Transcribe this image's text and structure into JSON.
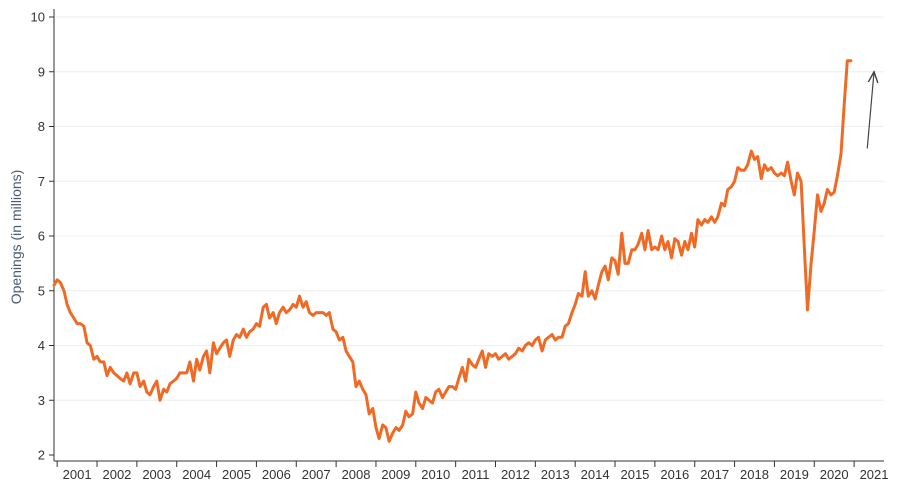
{
  "chart_data": {
    "type": "line",
    "ylabel": "Openings (in millions)",
    "ylim": [
      2,
      10
    ],
    "y_ticks": [
      "2",
      "3",
      "4",
      "5",
      "6",
      "7",
      "8",
      "9",
      "10"
    ],
    "x_range": [
      2000.92,
      2021.75
    ],
    "x_ticks": [
      "2001",
      "2002",
      "2003",
      "2004",
      "2005",
      "2006",
      "2007",
      "2008",
      "2009",
      "2010",
      "2011",
      "2012",
      "2013",
      "2014",
      "2015",
      "2016",
      "2017",
      "2018",
      "2019",
      "2020",
      "2021"
    ],
    "grid": "horizontal",
    "series_color": "#ef6a25",
    "series": [
      {
        "points": [
          [
            2000.92,
            5.1
          ],
          [
            2001.0,
            5.2
          ],
          [
            2001.08,
            5.15
          ],
          [
            2001.17,
            5.0
          ],
          [
            2001.25,
            4.75
          ],
          [
            2001.33,
            4.6
          ],
          [
            2001.42,
            4.5
          ],
          [
            2001.5,
            4.4
          ],
          [
            2001.58,
            4.4
          ],
          [
            2001.67,
            4.35
          ],
          [
            2001.75,
            4.05
          ],
          [
            2001.83,
            4.0
          ],
          [
            2001.92,
            3.75
          ],
          [
            2002.0,
            3.8
          ],
          [
            2002.08,
            3.7
          ],
          [
            2002.17,
            3.7
          ],
          [
            2002.25,
            3.45
          ],
          [
            2002.33,
            3.6
          ],
          [
            2002.42,
            3.5
          ],
          [
            2002.5,
            3.45
          ],
          [
            2002.58,
            3.4
          ],
          [
            2002.67,
            3.35
          ],
          [
            2002.75,
            3.5
          ],
          [
            2002.83,
            3.3
          ],
          [
            2002.92,
            3.5
          ],
          [
            2003.0,
            3.5
          ],
          [
            2003.08,
            3.25
          ],
          [
            2003.17,
            3.35
          ],
          [
            2003.25,
            3.15
          ],
          [
            2003.33,
            3.1
          ],
          [
            2003.42,
            3.25
          ],
          [
            2003.5,
            3.35
          ],
          [
            2003.58,
            3.0
          ],
          [
            2003.67,
            3.2
          ],
          [
            2003.75,
            3.15
          ],
          [
            2003.83,
            3.3
          ],
          [
            2003.92,
            3.35
          ],
          [
            2004.0,
            3.4
          ],
          [
            2004.08,
            3.5
          ],
          [
            2004.17,
            3.5
          ],
          [
            2004.25,
            3.5
          ],
          [
            2004.33,
            3.7
          ],
          [
            2004.42,
            3.35
          ],
          [
            2004.5,
            3.75
          ],
          [
            2004.58,
            3.55
          ],
          [
            2004.67,
            3.8
          ],
          [
            2004.75,
            3.9
          ],
          [
            2004.83,
            3.5
          ],
          [
            2004.92,
            4.05
          ],
          [
            2005.0,
            3.85
          ],
          [
            2005.08,
            3.95
          ],
          [
            2005.17,
            4.05
          ],
          [
            2005.25,
            4.1
          ],
          [
            2005.33,
            3.8
          ],
          [
            2005.42,
            4.1
          ],
          [
            2005.5,
            4.2
          ],
          [
            2005.58,
            4.15
          ],
          [
            2005.67,
            4.3
          ],
          [
            2005.75,
            4.15
          ],
          [
            2005.83,
            4.25
          ],
          [
            2005.92,
            4.3
          ],
          [
            2006.0,
            4.4
          ],
          [
            2006.08,
            4.35
          ],
          [
            2006.17,
            4.7
          ],
          [
            2006.25,
            4.75
          ],
          [
            2006.33,
            4.5
          ],
          [
            2006.42,
            4.6
          ],
          [
            2006.5,
            4.4
          ],
          [
            2006.58,
            4.6
          ],
          [
            2006.67,
            4.7
          ],
          [
            2006.75,
            4.6
          ],
          [
            2006.83,
            4.65
          ],
          [
            2006.92,
            4.75
          ],
          [
            2007.0,
            4.7
          ],
          [
            2007.08,
            4.9
          ],
          [
            2007.17,
            4.7
          ],
          [
            2007.25,
            4.8
          ],
          [
            2007.33,
            4.6
          ],
          [
            2007.42,
            4.55
          ],
          [
            2007.5,
            4.6
          ],
          [
            2007.58,
            4.6
          ],
          [
            2007.67,
            4.6
          ],
          [
            2007.75,
            4.55
          ],
          [
            2007.83,
            4.6
          ],
          [
            2007.92,
            4.3
          ],
          [
            2008.0,
            4.25
          ],
          [
            2008.08,
            4.1
          ],
          [
            2008.17,
            4.15
          ],
          [
            2008.25,
            3.9
          ],
          [
            2008.33,
            3.8
          ],
          [
            2008.42,
            3.7
          ],
          [
            2008.5,
            3.25
          ],
          [
            2008.58,
            3.35
          ],
          [
            2008.67,
            3.2
          ],
          [
            2008.75,
            3.1
          ],
          [
            2008.83,
            2.75
          ],
          [
            2008.92,
            2.85
          ],
          [
            2009.0,
            2.5
          ],
          [
            2009.08,
            2.3
          ],
          [
            2009.17,
            2.55
          ],
          [
            2009.25,
            2.5
          ],
          [
            2009.33,
            2.25
          ],
          [
            2009.42,
            2.4
          ],
          [
            2009.5,
            2.5
          ],
          [
            2009.58,
            2.45
          ],
          [
            2009.67,
            2.55
          ],
          [
            2009.75,
            2.8
          ],
          [
            2009.83,
            2.7
          ],
          [
            2009.92,
            2.75
          ],
          [
            2010.0,
            3.15
          ],
          [
            2010.08,
            2.95
          ],
          [
            2010.17,
            2.85
          ],
          [
            2010.25,
            3.05
          ],
          [
            2010.33,
            3.0
          ],
          [
            2010.42,
            2.95
          ],
          [
            2010.5,
            3.15
          ],
          [
            2010.58,
            3.2
          ],
          [
            2010.67,
            3.05
          ],
          [
            2010.75,
            3.15
          ],
          [
            2010.83,
            3.25
          ],
          [
            2010.92,
            3.25
          ],
          [
            2011.0,
            3.2
          ],
          [
            2011.08,
            3.4
          ],
          [
            2011.17,
            3.6
          ],
          [
            2011.25,
            3.35
          ],
          [
            2011.33,
            3.75
          ],
          [
            2011.42,
            3.65
          ],
          [
            2011.5,
            3.6
          ],
          [
            2011.58,
            3.75
          ],
          [
            2011.67,
            3.9
          ],
          [
            2011.75,
            3.6
          ],
          [
            2011.83,
            3.85
          ],
          [
            2011.92,
            3.8
          ],
          [
            2012.0,
            3.85
          ],
          [
            2012.08,
            3.75
          ],
          [
            2012.17,
            3.8
          ],
          [
            2012.25,
            3.85
          ],
          [
            2012.33,
            3.75
          ],
          [
            2012.42,
            3.8
          ],
          [
            2012.5,
            3.85
          ],
          [
            2012.58,
            3.95
          ],
          [
            2012.67,
            3.9
          ],
          [
            2012.75,
            4.0
          ],
          [
            2012.83,
            4.05
          ],
          [
            2012.92,
            4.0
          ],
          [
            2013.0,
            4.1
          ],
          [
            2013.08,
            4.15
          ],
          [
            2013.17,
            3.9
          ],
          [
            2013.25,
            4.1
          ],
          [
            2013.33,
            4.15
          ],
          [
            2013.42,
            4.2
          ],
          [
            2013.5,
            4.1
          ],
          [
            2013.58,
            4.15
          ],
          [
            2013.67,
            4.15
          ],
          [
            2013.75,
            4.35
          ],
          [
            2013.83,
            4.4
          ],
          [
            2013.92,
            4.6
          ],
          [
            2014.0,
            4.75
          ],
          [
            2014.08,
            4.95
          ],
          [
            2014.17,
            4.9
          ],
          [
            2014.25,
            5.35
          ],
          [
            2014.33,
            4.9
          ],
          [
            2014.42,
            5.0
          ],
          [
            2014.5,
            4.85
          ],
          [
            2014.58,
            5.1
          ],
          [
            2014.67,
            5.35
          ],
          [
            2014.75,
            5.45
          ],
          [
            2014.83,
            5.2
          ],
          [
            2014.92,
            5.6
          ],
          [
            2015.0,
            5.55
          ],
          [
            2015.08,
            5.3
          ],
          [
            2015.17,
            6.05
          ],
          [
            2015.25,
            5.5
          ],
          [
            2015.33,
            5.5
          ],
          [
            2015.42,
            5.75
          ],
          [
            2015.5,
            5.75
          ],
          [
            2015.58,
            5.85
          ],
          [
            2015.67,
            6.05
          ],
          [
            2015.75,
            5.75
          ],
          [
            2015.83,
            6.1
          ],
          [
            2015.92,
            5.75
          ],
          [
            2016.0,
            5.8
          ],
          [
            2016.08,
            5.75
          ],
          [
            2016.17,
            6.0
          ],
          [
            2016.25,
            5.75
          ],
          [
            2016.33,
            5.9
          ],
          [
            2016.42,
            5.6
          ],
          [
            2016.5,
            5.95
          ],
          [
            2016.58,
            5.9
          ],
          [
            2016.67,
            5.65
          ],
          [
            2016.75,
            5.9
          ],
          [
            2016.83,
            5.75
          ],
          [
            2016.92,
            6.05
          ],
          [
            2017.0,
            5.8
          ],
          [
            2017.08,
            6.3
          ],
          [
            2017.17,
            6.2
          ],
          [
            2017.25,
            6.3
          ],
          [
            2017.33,
            6.25
          ],
          [
            2017.42,
            6.35
          ],
          [
            2017.5,
            6.25
          ],
          [
            2017.58,
            6.35
          ],
          [
            2017.67,
            6.6
          ],
          [
            2017.75,
            6.55
          ],
          [
            2017.83,
            6.85
          ],
          [
            2017.92,
            6.9
          ],
          [
            2018.0,
            7.0
          ],
          [
            2018.08,
            7.25
          ],
          [
            2018.17,
            7.2
          ],
          [
            2018.25,
            7.2
          ],
          [
            2018.33,
            7.3
          ],
          [
            2018.42,
            7.55
          ],
          [
            2018.5,
            7.4
          ],
          [
            2018.58,
            7.45
          ],
          [
            2018.67,
            7.05
          ],
          [
            2018.75,
            7.3
          ],
          [
            2018.83,
            7.2
          ],
          [
            2018.92,
            7.25
          ],
          [
            2019.0,
            7.15
          ],
          [
            2019.08,
            7.1
          ],
          [
            2019.17,
            7.15
          ],
          [
            2019.25,
            7.1
          ],
          [
            2019.33,
            7.35
          ],
          [
            2019.42,
            7.0
          ],
          [
            2019.5,
            6.75
          ],
          [
            2019.58,
            7.15
          ],
          [
            2019.67,
            7.0
          ],
          [
            2019.75,
            5.8
          ],
          [
            2019.83,
            4.65
          ],
          [
            2019.92,
            5.5
          ],
          [
            2020.0,
            6.1
          ],
          [
            2020.08,
            6.75
          ],
          [
            2020.17,
            6.45
          ],
          [
            2020.25,
            6.6
          ],
          [
            2020.33,
            6.85
          ],
          [
            2020.42,
            6.75
          ],
          [
            2020.5,
            6.8
          ],
          [
            2020.58,
            7.1
          ],
          [
            2020.67,
            7.5
          ],
          [
            2020.75,
            8.4
          ],
          [
            2020.83,
            9.2
          ],
          [
            2020.92,
            9.2
          ]
        ]
      }
    ],
    "annotation": {
      "type": "arrow",
      "from": [
        2021.33,
        7.6
      ],
      "to": [
        2021.5,
        9.0
      ],
      "color": "#444444"
    }
  }
}
